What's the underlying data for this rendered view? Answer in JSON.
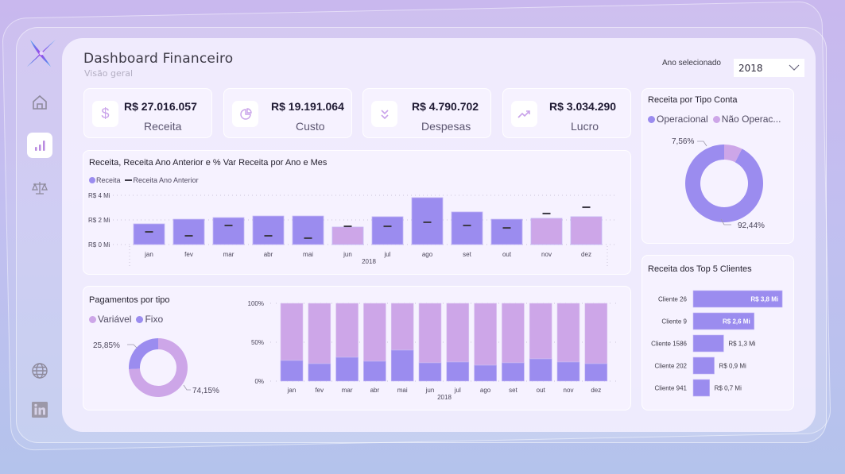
{
  "header": {
    "title": "Dashboard Financeiro",
    "subtitle": "Visão geral",
    "year_label": "Ano selecionado",
    "year_value": "2018"
  },
  "sidebar": {
    "items": [
      {
        "icon": "home-icon",
        "active": false
      },
      {
        "icon": "bar-chart-icon",
        "active": true
      },
      {
        "icon": "scale-icon",
        "active": false
      },
      {
        "icon": "globe-icon",
        "active": false
      },
      {
        "icon": "linkedin-icon",
        "active": false
      }
    ]
  },
  "kpis": [
    {
      "value": "R$ 27.016.057",
      "label": "Receita",
      "icon": "dollar-icon"
    },
    {
      "value": "R$ 19.191.064",
      "label": "Custo",
      "icon": "pie-chart-icon"
    },
    {
      "value": "R$ 4.790.702",
      "label": "Despesas",
      "icon": "double-chevron-down-icon"
    },
    {
      "value": "R$ 3.034.290",
      "label": "Lucro",
      "icon": "trending-up-icon"
    }
  ],
  "colors": {
    "primary": "#9b8cef",
    "secondary": "#cda6e8",
    "marker": "#3d3a46"
  },
  "chart_data": [
    {
      "type": "bar",
      "title": "Receita, Receita Ano Anterior e % Var Receita por Ano e Mes",
      "legend": [
        "Receita",
        "Receita Ano Anterior"
      ],
      "categories": [
        "jan",
        "fev",
        "mar",
        "abr",
        "mai",
        "jun",
        "jul",
        "ago",
        "set",
        "out",
        "nov",
        "dez"
      ],
      "x_group_label": "2018",
      "yticks": [
        "R$ 0 Mi",
        "R$ 2 Mi",
        "R$ 4 Mi"
      ],
      "ylim": [
        0,
        4
      ],
      "series": [
        {
          "name": "Receita",
          "values": [
            1.68,
            2.06,
            2.19,
            2.32,
            2.32,
            1.42,
            2.26,
            3.81,
            2.65,
            2.06,
            2.13,
            2.26
          ]
        },
        {
          "name": "Receita Ano Anterior",
          "values": [
            1.03,
            0.71,
            1.55,
            0.71,
            0.52,
            1.48,
            1.48,
            1.81,
            1.55,
            1.35,
            2.52,
            3.03
          ]
        }
      ],
      "negative_var_months": [
        "jun",
        "nov",
        "dez"
      ]
    },
    {
      "type": "pie",
      "title": "Receita por Tipo Conta",
      "legend": [
        "Operacional",
        "Não Operac..."
      ],
      "labels": [
        "Operacional",
        "Não Operacional"
      ],
      "values": [
        92.44,
        7.56
      ],
      "data_labels": [
        "92,44%",
        "7,56%"
      ]
    },
    {
      "type": "pie",
      "title": "Pagamentos por tipo",
      "legend": [
        "Variável",
        "Fixo"
      ],
      "labels": [
        "Variável",
        "Fixo"
      ],
      "values": [
        74.15,
        25.85
      ],
      "data_labels": [
        "74,15%",
        "25,85%"
      ]
    },
    {
      "type": "bar",
      "stacked": true,
      "categories": [
        "jan",
        "fev",
        "mar",
        "abr",
        "mai",
        "jun",
        "jul",
        "ago",
        "set",
        "out",
        "nov",
        "dez"
      ],
      "x_group_label": "2018",
      "yticks": [
        "0%",
        "50%",
        "100%"
      ],
      "ylim": [
        0,
        100
      ],
      "series": [
        {
          "name": "Fixo",
          "values": [
            26.5,
            22.4,
            30.6,
            25.5,
            39.8,
            23.5,
            24.5,
            20.4,
            23.5,
            28.6,
            24.5,
            22.4
          ]
        },
        {
          "name": "Variável",
          "values": [
            73.5,
            77.6,
            69.4,
            74.5,
            60.2,
            76.5,
            75.5,
            79.6,
            76.5,
            71.4,
            75.5,
            77.6
          ]
        }
      ]
    },
    {
      "type": "bar",
      "orientation": "horizontal",
      "title": "Receita dos Top 5 Clientes",
      "categories": [
        "Cliente 26",
        "Cliente 9",
        "Cliente 1586",
        "Cliente 202",
        "Cliente 941"
      ],
      "values": [
        3.8,
        2.6,
        1.3,
        0.9,
        0.7
      ],
      "data_labels": [
        "R$ 3,8 Mi",
        "R$ 2,6 Mi",
        "R$ 1,3 Mi",
        "R$ 0,9 Mi",
        "R$ 0,7 Mi"
      ]
    }
  ]
}
